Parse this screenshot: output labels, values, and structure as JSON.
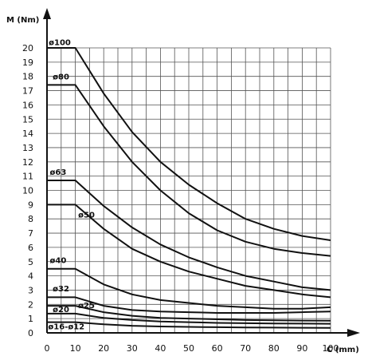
{
  "chart_data": {
    "type": "line",
    "title": "",
    "ylabel": "M (Nm)",
    "xlabel": "C (mm)",
    "xlim": [
      0,
      100
    ],
    "ylim": [
      0,
      20
    ],
    "x_ticks": [
      "0",
      "10",
      "20",
      "30",
      "40",
      "50",
      "60",
      "70",
      "80",
      "90",
      "100"
    ],
    "y_ticks": [
      "0",
      "1",
      "2",
      "3",
      "4",
      "5",
      "6",
      "7",
      "8",
      "9",
      "10",
      "11",
      "12",
      "13",
      "14",
      "15",
      "16",
      "17",
      "18",
      "19",
      "20"
    ],
    "grid": true,
    "series": [
      {
        "name": "ø100",
        "x": [
          0,
          10,
          20,
          30,
          40,
          50,
          60,
          70,
          80,
          90,
          100
        ],
        "y": [
          20,
          20,
          16.8,
          14.1,
          12.0,
          10.4,
          9.1,
          8.0,
          7.3,
          6.8,
          6.5
        ]
      },
      {
        "name": "ø80",
        "x": [
          0,
          10,
          20,
          30,
          40,
          50,
          60,
          70,
          80,
          90,
          100
        ],
        "y": [
          17.4,
          17.4,
          14.5,
          12.0,
          10.0,
          8.4,
          7.2,
          6.4,
          5.9,
          5.6,
          5.4
        ]
      },
      {
        "name": "ø63",
        "x": [
          0,
          10,
          20,
          30,
          40,
          50,
          60,
          70,
          80,
          90,
          100
        ],
        "y": [
          10.7,
          10.7,
          8.9,
          7.4,
          6.2,
          5.3,
          4.6,
          4.0,
          3.6,
          3.2,
          3.0
        ]
      },
      {
        "name": "ø50",
        "x": [
          0,
          10,
          20,
          30,
          40,
          50,
          60,
          70,
          80,
          90,
          100
        ],
        "y": [
          9.0,
          9.0,
          7.3,
          5.9,
          5.0,
          4.3,
          3.8,
          3.3,
          3.0,
          2.7,
          2.5
        ]
      },
      {
        "name": "ø40",
        "x": [
          0,
          10,
          20,
          30,
          40,
          50,
          60,
          70,
          80,
          90,
          100
        ],
        "y": [
          4.5,
          4.5,
          3.4,
          2.7,
          2.3,
          2.1,
          1.9,
          1.8,
          1.7,
          1.7,
          1.8
        ]
      },
      {
        "name": "ø32",
        "x": [
          0,
          10,
          20,
          30,
          40,
          50,
          60,
          70,
          80,
          90,
          100
        ],
        "y": [
          2.5,
          2.5,
          1.9,
          1.6,
          1.5,
          1.45,
          1.4,
          1.4,
          1.4,
          1.45,
          1.5
        ]
      },
      {
        "name": "ø25",
        "x": [
          0,
          10,
          20,
          30,
          40,
          50,
          60,
          70,
          80,
          90,
          100
        ],
        "y": [
          1.9,
          1.9,
          1.45,
          1.2,
          1.05,
          1.0,
          0.95,
          0.9,
          0.88,
          0.86,
          0.85
        ]
      },
      {
        "name": "ø20",
        "x": [
          0,
          10,
          20,
          30,
          40,
          50,
          60,
          70,
          80,
          90,
          100
        ],
        "y": [
          1.35,
          1.35,
          1.05,
          0.9,
          0.8,
          0.75,
          0.7,
          0.68,
          0.66,
          0.65,
          0.64
        ]
      },
      {
        "name": "ø16-ø12",
        "x": [
          0,
          10,
          20,
          30,
          40,
          50,
          60,
          70,
          80,
          90,
          100
        ],
        "y": [
          0.75,
          0.75,
          0.6,
          0.5,
          0.45,
          0.42,
          0.4,
          0.38,
          0.37,
          0.36,
          0.35
        ]
      }
    ]
  }
}
